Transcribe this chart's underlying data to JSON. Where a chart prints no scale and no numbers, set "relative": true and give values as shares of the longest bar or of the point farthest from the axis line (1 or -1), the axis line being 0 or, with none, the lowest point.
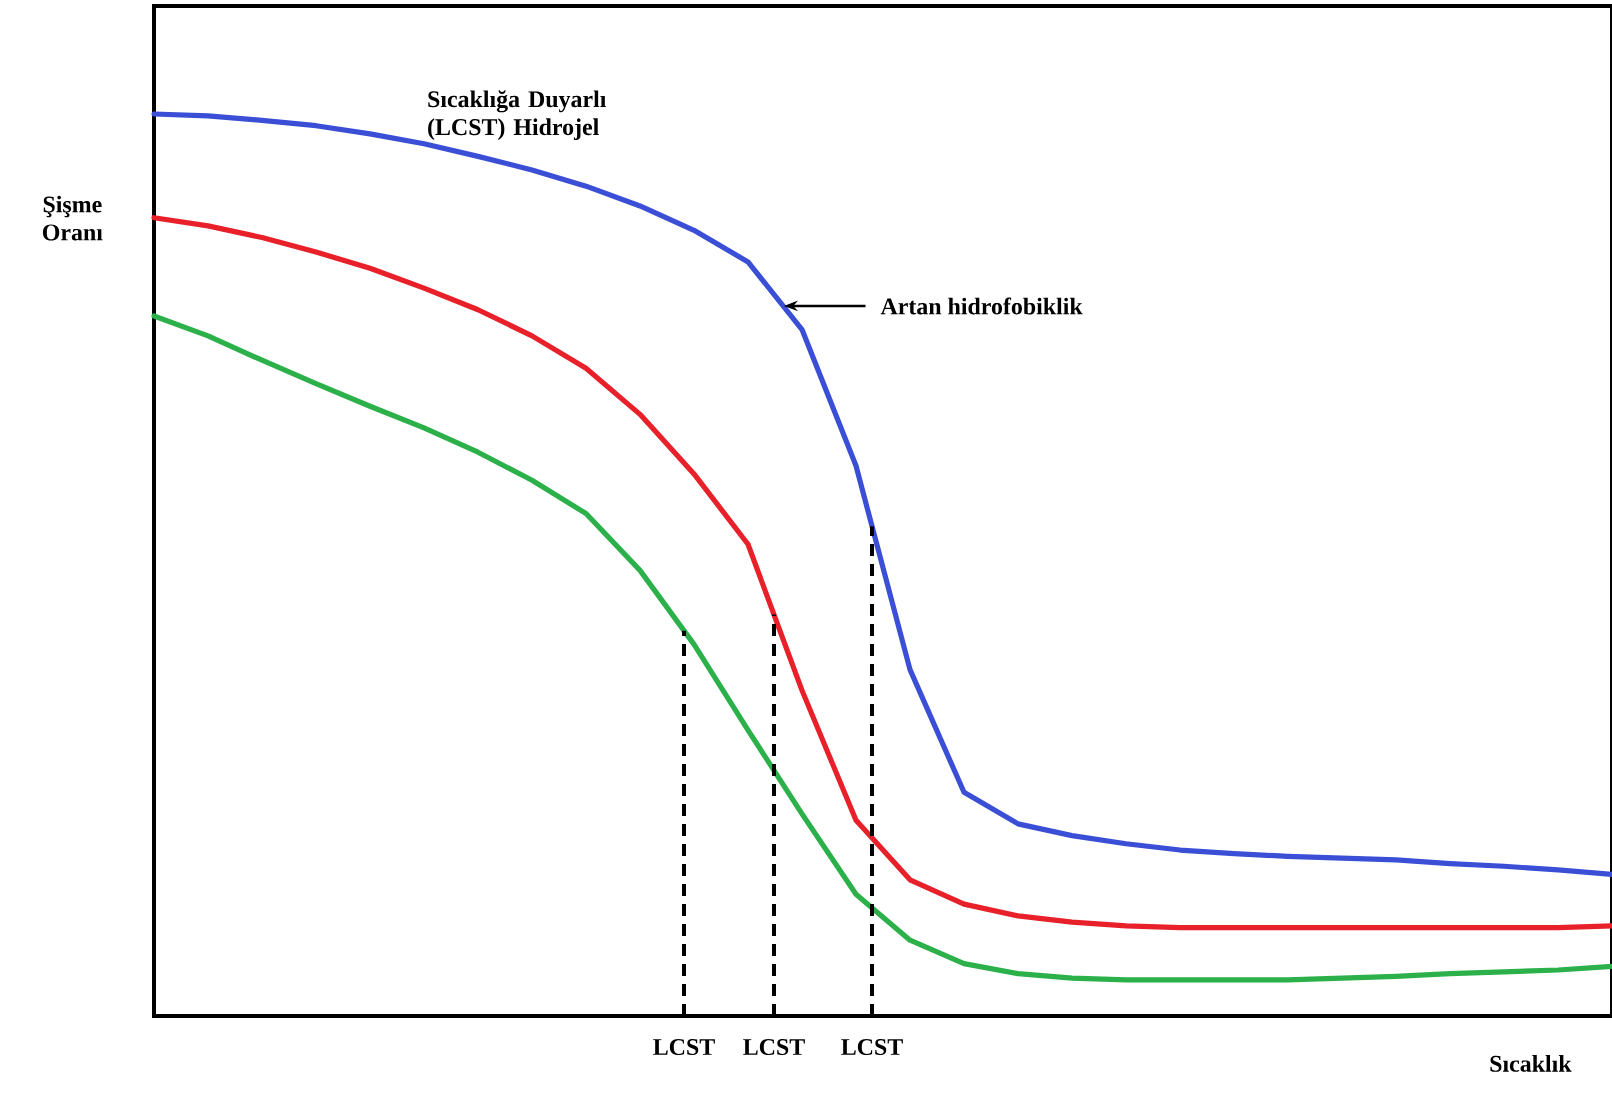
{
  "chart_data": {
    "type": "line",
    "relative": true,
    "xlabel": "Sıcaklık",
    "ylabel": "Şişme Oranı",
    "categories": [
      null,
      null,
      null,
      null,
      null,
      null,
      null,
      null,
      null,
      null,
      null,
      null,
      null,
      null,
      null,
      null,
      null,
      null,
      null,
      null,
      null,
      null,
      null,
      null,
      null,
      null,
      null,
      null
    ],
    "series": [
      {
        "color": "#3a4fd6",
        "values": [
          1.0,
          0.998,
          0.993,
          0.987,
          0.978,
          0.967,
          0.953,
          0.938,
          0.92,
          0.898,
          0.871,
          0.836,
          0.761,
          0.61,
          0.384,
          0.248,
          0.213,
          0.2,
          0.191,
          0.184,
          0.18,
          0.177,
          0.175,
          0.173,
          0.169,
          0.166,
          0.162,
          0.157
        ]
      },
      {
        "color": "#e8202a",
        "values": [
          0.885,
          0.876,
          0.863,
          0.847,
          0.829,
          0.807,
          0.783,
          0.754,
          0.718,
          0.667,
          0.601,
          0.523,
          0.361,
          0.217,
          0.151,
          0.124,
          0.111,
          0.104,
          0.1,
          0.098,
          0.098,
          0.098,
          0.098,
          0.098,
          0.098,
          0.098,
          0.098,
          0.1
        ]
      },
      {
        "color": "#2bb04a",
        "values": [
          0.776,
          0.754,
          0.727,
          0.701,
          0.676,
          0.652,
          0.625,
          0.594,
          0.557,
          0.494,
          0.412,
          0.317,
          0.224,
          0.135,
          0.084,
          0.058,
          0.047,
          0.042,
          0.04,
          0.04,
          0.04,
          0.04,
          0.042,
          0.044,
          0.047,
          0.049,
          0.051,
          0.055
        ]
      }
    ],
    "annotations": [
      "Sıcaklığa Duyarlı (LCST) Hidrojel",
      "Artan hidrofobiklik",
      "LCST",
      "LCST",
      "LCST"
    ]
  }
}
